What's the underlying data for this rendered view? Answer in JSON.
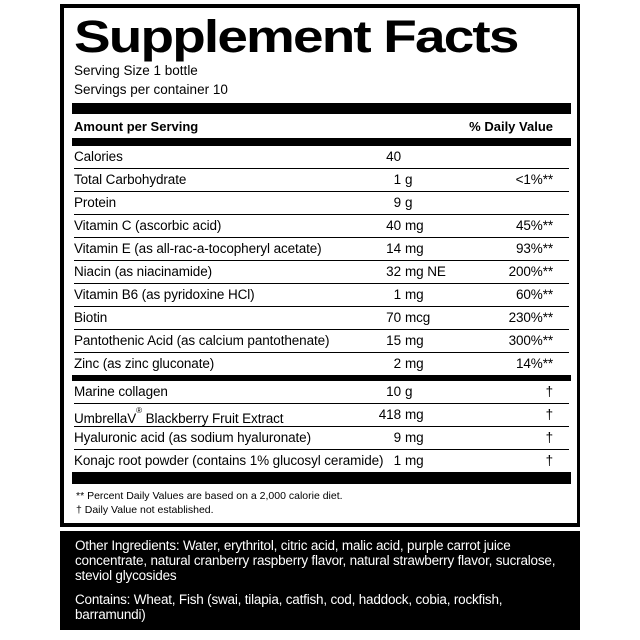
{
  "panel": {
    "title": "Supplement Facts",
    "serving_size": "Serving Size 1 bottle",
    "servings_per_container": "Servings per container 10"
  },
  "table": {
    "header": {
      "amount": "Amount per Serving",
      "daily_value": "% Daily Value"
    },
    "groups": [
      {
        "rows": [
          {
            "name": "Calories",
            "amount": "40",
            "unit": "",
            "daily_value": ""
          },
          {
            "name": "Total Carbohydrate",
            "amount": "1",
            "unit": "g",
            "daily_value": "<1%**"
          },
          {
            "name": "Protein",
            "amount": "9",
            "unit": "g",
            "daily_value": ""
          },
          {
            "name": "Vitamin C (ascorbic acid)",
            "amount": "40",
            "unit": "mg",
            "daily_value": "45%**"
          },
          {
            "name": "Vitamin E (as all-rac-a-tocopheryl acetate)",
            "amount": "14",
            "unit": "mg",
            "daily_value": "93%**"
          },
          {
            "name": "Niacin (as niacinamide)",
            "amount": "32",
            "unit": "mg NE",
            "daily_value": "200%**"
          },
          {
            "name": "Vitamin B6 (as pyridoxine HCl)",
            "amount": "1",
            "unit": "mg",
            "daily_value": "60%**"
          },
          {
            "name": "Biotin",
            "amount": "70",
            "unit": "mcg",
            "daily_value": "230%**"
          },
          {
            "name": "Pantothenic Acid (as calcium pantothenate)",
            "amount": "15",
            "unit": "mg",
            "daily_value": "300%**"
          },
          {
            "name": "Zinc (as zinc gluconate)",
            "amount": "2",
            "unit": "mg",
            "daily_value": "14%**"
          }
        ]
      },
      {
        "rows": [
          {
            "name": "Marine collagen",
            "amount": "10",
            "unit": "g",
            "daily_value": "†"
          },
          {
            "name": "UmbrellaV® Blackberry Fruit Extract",
            "amount": "418",
            "unit": "mg",
            "daily_value": "†"
          },
          {
            "name": "Hyaluronic acid (as sodium hyaluronate)",
            "amount": "9",
            "unit": "mg",
            "daily_value": "†"
          },
          {
            "name": "Konajc root powder (contains 1% glucosyl ceramide)",
            "amount": "1",
            "unit": "mg",
            "daily_value": "†"
          }
        ]
      }
    ]
  },
  "footnotes": [
    "** Percent Daily Values are based on a 2,000 calorie diet.",
    "† Daily Value not established."
  ],
  "footer": {
    "other_ingredients": "Other Ingredients: Water, erythritol, citric acid, malic acid, purple carrot juice concentrate, natural cranberry raspberry flavor, natural strawberry flavor, sucralose, steviol glycosides",
    "contains": "Contains: Wheat, Fish (swai, tilapia, catfish, cod, haddock, cobia, rockfish, barramundi)"
  },
  "colors": {
    "ink": "#000000",
    "paper": "#ffffff",
    "footer_bg": "#000000",
    "footer_text": "#ffffff"
  }
}
